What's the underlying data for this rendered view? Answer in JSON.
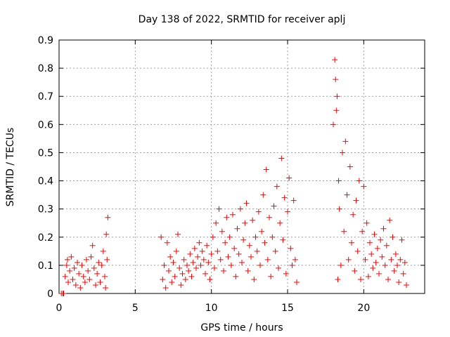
{
  "chart_data": {
    "type": "scatter",
    "title": "Day 138 of 2022, SRMTID for receiver aplj",
    "xlabel": "GPS time / hours",
    "ylabel": "SRMTID / TECUs",
    "xlim": [
      0,
      24
    ],
    "ylim": [
      0,
      0.9
    ],
    "xticks": [
      0,
      5,
      10,
      15,
      20
    ],
    "yticks": [
      0,
      0.1,
      0.2,
      0.3,
      0.4,
      0.5,
      0.6,
      0.7,
      0.8,
      0.9
    ],
    "xtick_labels": [
      "0",
      "5",
      "10",
      "15",
      "20"
    ],
    "ytick_labels": [
      "0",
      "0.1",
      "0.2",
      "0.3",
      "0.4",
      "0.5",
      "0.6",
      "0.7",
      "0.8",
      "0.9"
    ],
    "grid": true,
    "marker": "+",
    "color": "#ff0000",
    "series": [
      {
        "name": "SRMTID",
        "points": [
          [
            0.15,
            0.0
          ],
          [
            0.25,
            0.0
          ],
          [
            0.3,
            0.0
          ],
          [
            0.4,
            0.06
          ],
          [
            0.5,
            0.1
          ],
          [
            0.55,
            0.12
          ],
          [
            0.6,
            0.04
          ],
          [
            0.7,
            0.08
          ],
          [
            0.8,
            0.13
          ],
          [
            0.9,
            0.05
          ],
          [
            1.0,
            0.09
          ],
          [
            1.1,
            0.03
          ],
          [
            1.2,
            0.11
          ],
          [
            1.3,
            0.07
          ],
          [
            1.4,
            0.02
          ],
          [
            1.5,
            0.1
          ],
          [
            1.6,
            0.06
          ],
          [
            1.7,
            0.04
          ],
          [
            1.8,
            0.12
          ],
          [
            1.9,
            0.08
          ],
          [
            2.0,
            0.05
          ],
          [
            2.1,
            0.13
          ],
          [
            2.2,
            0.17
          ],
          [
            2.3,
            0.09
          ],
          [
            2.4,
            0.03
          ],
          [
            2.5,
            0.07
          ],
          [
            2.6,
            0.11
          ],
          [
            2.7,
            0.04
          ],
          [
            2.8,
            0.1
          ],
          [
            2.9,
            0.15
          ],
          [
            3.0,
            0.06
          ],
          [
            3.05,
            0.02
          ],
          [
            3.1,
            0.21
          ],
          [
            3.15,
            0.12
          ],
          [
            3.2,
            0.27
          ],
          [
            6.7,
            0.2
          ],
          [
            6.8,
            0.05
          ],
          [
            6.9,
            0.1
          ],
          [
            7.0,
            0.02
          ],
          [
            7.1,
            0.18
          ],
          [
            7.2,
            0.08
          ],
          [
            7.3,
            0.13
          ],
          [
            7.4,
            0.04
          ],
          [
            7.5,
            0.11
          ],
          [
            7.6,
            0.06
          ],
          [
            7.7,
            0.15
          ],
          [
            7.8,
            0.21
          ],
          [
            7.9,
            0.09
          ],
          [
            8.0,
            0.03
          ],
          [
            8.1,
            0.07
          ],
          [
            8.2,
            0.12
          ],
          [
            8.3,
            0.05
          ],
          [
            8.4,
            0.1
          ],
          [
            8.5,
            0.08
          ],
          [
            8.6,
            0.14
          ],
          [
            8.7,
            0.06
          ],
          [
            8.8,
            0.11
          ],
          [
            8.9,
            0.16
          ],
          [
            9.0,
            0.09
          ],
          [
            9.1,
            0.13
          ],
          [
            9.2,
            0.18
          ],
          [
            9.3,
            0.1
          ],
          [
            9.4,
            0.15
          ],
          [
            9.5,
            0.12
          ],
          [
            9.6,
            0.07
          ],
          [
            9.7,
            0.17
          ],
          [
            9.8,
            0.11
          ],
          [
            9.9,
            0.05
          ],
          [
            10.0,
            0.14
          ],
          [
            10.1,
            0.2
          ],
          [
            10.2,
            0.09
          ],
          [
            10.3,
            0.25
          ],
          [
            10.4,
            0.15
          ],
          [
            10.5,
            0.3
          ],
          [
            10.6,
            0.12
          ],
          [
            10.7,
            0.22
          ],
          [
            10.8,
            0.08
          ],
          [
            10.9,
            0.18
          ],
          [
            11.0,
            0.27
          ],
          [
            11.1,
            0.13
          ],
          [
            11.2,
            0.2
          ],
          [
            11.3,
            0.1
          ],
          [
            11.4,
            0.28
          ],
          [
            11.5,
            0.16
          ],
          [
            11.6,
            0.06
          ],
          [
            11.7,
            0.23
          ],
          [
            11.8,
            0.14
          ],
          [
            11.9,
            0.3
          ],
          [
            12.0,
            0.11
          ],
          [
            12.1,
            0.19
          ],
          [
            12.2,
            0.25
          ],
          [
            12.3,
            0.32
          ],
          [
            12.4,
            0.08
          ],
          [
            12.5,
            0.17
          ],
          [
            12.6,
            0.13
          ],
          [
            12.7,
            0.26
          ],
          [
            12.8,
            0.05
          ],
          [
            12.9,
            0.2
          ],
          [
            13.0,
            0.15
          ],
          [
            13.1,
            0.29
          ],
          [
            13.2,
            0.1
          ],
          [
            13.3,
            0.22
          ],
          [
            13.4,
            0.35
          ],
          [
            13.5,
            0.18
          ],
          [
            13.6,
            0.44
          ],
          [
            13.7,
            0.12
          ],
          [
            13.8,
            0.27
          ],
          [
            13.9,
            0.06
          ],
          [
            14.0,
            0.2
          ],
          [
            14.1,
            0.31
          ],
          [
            14.2,
            0.15
          ],
          [
            14.3,
            0.38
          ],
          [
            14.4,
            0.09
          ],
          [
            14.5,
            0.25
          ],
          [
            14.6,
            0.48
          ],
          [
            14.7,
            0.19
          ],
          [
            14.8,
            0.34
          ],
          [
            14.9,
            0.07
          ],
          [
            15.0,
            0.29
          ],
          [
            15.1,
            0.41
          ],
          [
            15.2,
            0.16
          ],
          [
            15.3,
            0.1
          ],
          [
            15.4,
            0.33
          ],
          [
            15.5,
            0.12
          ],
          [
            15.6,
            0.04
          ],
          [
            18.0,
            0.6
          ],
          [
            18.1,
            0.83
          ],
          [
            18.15,
            0.76
          ],
          [
            18.2,
            0.65
          ],
          [
            18.25,
            0.7
          ],
          [
            18.3,
            0.05
          ],
          [
            18.35,
            0.4
          ],
          [
            18.4,
            0.3
          ],
          [
            18.5,
            0.1
          ],
          [
            18.6,
            0.5
          ],
          [
            18.7,
            0.22
          ],
          [
            18.8,
            0.54
          ],
          [
            18.9,
            0.35
          ],
          [
            19.0,
            0.12
          ],
          [
            19.1,
            0.45
          ],
          [
            19.2,
            0.18
          ],
          [
            19.3,
            0.28
          ],
          [
            19.4,
            0.08
          ],
          [
            19.5,
            0.33
          ],
          [
            19.6,
            0.15
          ],
          [
            19.7,
            0.4
          ],
          [
            19.8,
            0.05
          ],
          [
            19.9,
            0.22
          ],
          [
            20.0,
            0.38
          ],
          [
            20.1,
            0.12
          ],
          [
            20.2,
            0.25
          ],
          [
            20.3,
            0.06
          ],
          [
            20.4,
            0.18
          ],
          [
            20.5,
            0.14
          ],
          [
            20.6,
            0.09
          ],
          [
            20.7,
            0.21
          ],
          [
            20.8,
            0.11
          ],
          [
            20.9,
            0.16
          ],
          [
            21.0,
            0.07
          ],
          [
            21.1,
            0.19
          ],
          [
            21.2,
            0.13
          ],
          [
            21.3,
            0.23
          ],
          [
            21.4,
            0.1
          ],
          [
            21.5,
            0.17
          ],
          [
            21.6,
            0.05
          ],
          [
            21.7,
            0.26
          ],
          [
            21.8,
            0.12
          ],
          [
            21.9,
            0.2
          ],
          [
            22.0,
            0.08
          ],
          [
            22.1,
            0.14
          ],
          [
            22.2,
            0.1
          ],
          [
            22.3,
            0.04
          ],
          [
            22.4,
            0.12
          ],
          [
            22.5,
            0.19
          ],
          [
            22.6,
            0.07
          ],
          [
            22.7,
            0.11
          ],
          [
            22.8,
            0.03
          ]
        ]
      }
    ]
  }
}
